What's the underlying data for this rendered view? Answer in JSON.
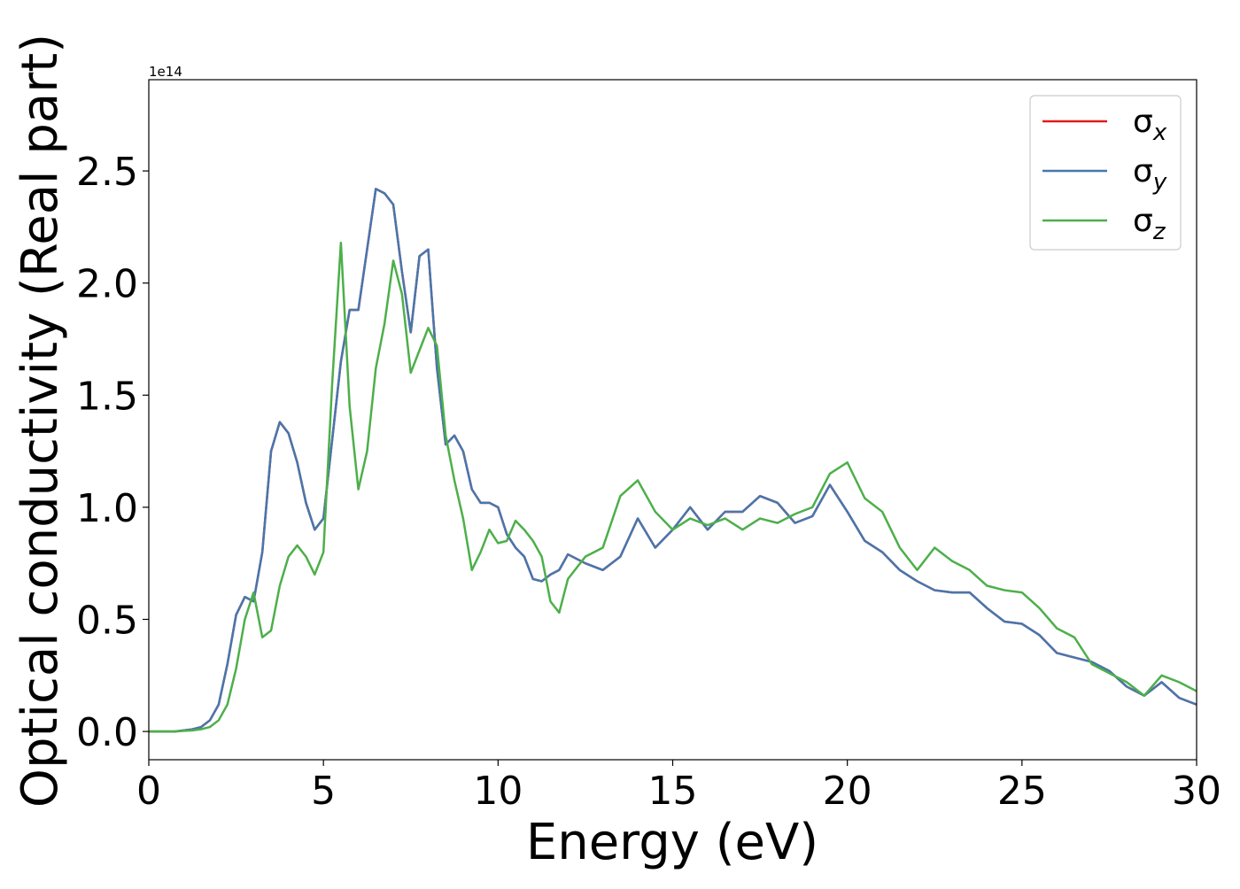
{
  "chart_data": {
    "type": "line",
    "xlabel": "Energy (eV)",
    "ylabel": "Optical conductivity (Real part)",
    "y_offset_label": "1e14",
    "xlim": [
      0,
      30
    ],
    "ylim": [
      -0.126,
      2.907
    ],
    "xticks": [
      0,
      5,
      10,
      15,
      20,
      25,
      30
    ],
    "yticks": [
      {
        "value": 0,
        "label": "0.0"
      },
      0.5,
      {
        "value": 1,
        "label": "1.0"
      },
      1.5,
      {
        "value": 2,
        "label": "2.0"
      },
      2.5
    ],
    "grid": false,
    "legend": "upper right",
    "x": [
      0,
      0.25,
      0.5,
      0.75,
      1,
      1.25,
      1.5,
      1.75,
      2,
      2.25,
      2.5,
      2.75,
      3,
      3.25,
      3.5,
      3.75,
      4,
      4.25,
      4.5,
      4.75,
      5,
      5.25,
      5.5,
      5.75,
      6,
      6.25,
      6.5,
      6.75,
      7,
      7.25,
      7.5,
      7.75,
      8,
      8.25,
      8.5,
      8.75,
      9,
      9.25,
      9.5,
      9.75,
      10,
      10.25,
      10.5,
      10.75,
      11,
      11.25,
      11.5,
      11.75,
      12,
      12.5,
      13,
      13.5,
      14,
      14.5,
      15,
      15.5,
      16,
      16.5,
      17,
      17.5,
      18,
      18.5,
      19,
      19.5,
      20,
      20.5,
      21,
      21.5,
      22,
      22.5,
      23,
      23.5,
      24,
      24.5,
      25,
      25.5,
      26,
      26.5,
      27,
      27.5,
      28,
      28.5,
      29,
      29.5,
      30
    ],
    "series": [
      {
        "name": "σx",
        "color": "#e41a1c",
        "values": [
          0,
          0,
          0,
          0,
          0.005,
          0.01,
          0.02,
          0.05,
          0.12,
          0.3,
          0.52,
          0.6,
          0.58,
          0.8,
          1.25,
          1.38,
          1.33,
          1.2,
          1.02,
          0.9,
          0.95,
          1.3,
          1.65,
          1.88,
          1.88,
          2.15,
          2.42,
          2.4,
          2.35,
          2.05,
          1.78,
          2.12,
          2.15,
          1.62,
          1.28,
          1.32,
          1.25,
          1.08,
          1.02,
          1.02,
          1.0,
          0.88,
          0.82,
          0.78,
          0.68,
          0.67,
          0.7,
          0.72,
          0.79,
          0.75,
          0.72,
          0.78,
          0.95,
          0.82,
          0.9,
          1.0,
          0.9,
          0.98,
          0.98,
          1.05,
          1.02,
          0.93,
          0.96,
          1.1,
          0.98,
          0.85,
          0.8,
          0.72,
          0.67,
          0.63,
          0.62,
          0.62,
          0.55,
          0.49,
          0.48,
          0.43,
          0.35,
          0.33,
          0.31,
          0.27,
          0.2,
          0.16,
          0.22,
          0.15,
          0.12
        ]
      },
      {
        "name": "σy",
        "color": "#4677ad",
        "values": [
          0,
          0,
          0,
          0,
          0.005,
          0.01,
          0.02,
          0.05,
          0.12,
          0.3,
          0.52,
          0.6,
          0.58,
          0.8,
          1.25,
          1.38,
          1.33,
          1.2,
          1.02,
          0.9,
          0.95,
          1.3,
          1.65,
          1.88,
          1.88,
          2.15,
          2.42,
          2.4,
          2.35,
          2.05,
          1.78,
          2.12,
          2.15,
          1.62,
          1.28,
          1.32,
          1.25,
          1.08,
          1.02,
          1.02,
          1.0,
          0.88,
          0.82,
          0.78,
          0.68,
          0.67,
          0.7,
          0.72,
          0.79,
          0.75,
          0.72,
          0.78,
          0.95,
          0.82,
          0.9,
          1.0,
          0.9,
          0.98,
          0.98,
          1.05,
          1.02,
          0.93,
          0.96,
          1.1,
          0.98,
          0.85,
          0.8,
          0.72,
          0.67,
          0.63,
          0.62,
          0.62,
          0.55,
          0.49,
          0.48,
          0.43,
          0.35,
          0.33,
          0.31,
          0.27,
          0.2,
          0.16,
          0.22,
          0.15,
          0.12
        ]
      },
      {
        "name": "σz",
        "color": "#4daf4a",
        "values": [
          0,
          0,
          0,
          0,
          0.003,
          0.005,
          0.01,
          0.02,
          0.05,
          0.12,
          0.28,
          0.5,
          0.62,
          0.42,
          0.45,
          0.65,
          0.78,
          0.83,
          0.78,
          0.7,
          0.8,
          1.55,
          2.18,
          1.45,
          1.08,
          1.25,
          1.62,
          1.82,
          2.1,
          1.95,
          1.6,
          1.7,
          1.8,
          1.72,
          1.32,
          1.12,
          0.95,
          0.72,
          0.8,
          0.9,
          0.84,
          0.85,
          0.94,
          0.9,
          0.85,
          0.78,
          0.58,
          0.53,
          0.68,
          0.78,
          0.82,
          1.05,
          1.12,
          0.98,
          0.9,
          0.95,
          0.92,
          0.95,
          0.9,
          0.95,
          0.93,
          0.97,
          1.0,
          1.15,
          1.2,
          1.04,
          0.98,
          0.82,
          0.72,
          0.82,
          0.76,
          0.72,
          0.65,
          0.63,
          0.62,
          0.55,
          0.46,
          0.42,
          0.3,
          0.26,
          0.22,
          0.16,
          0.25,
          0.22,
          0.18
        ]
      }
    ]
  }
}
